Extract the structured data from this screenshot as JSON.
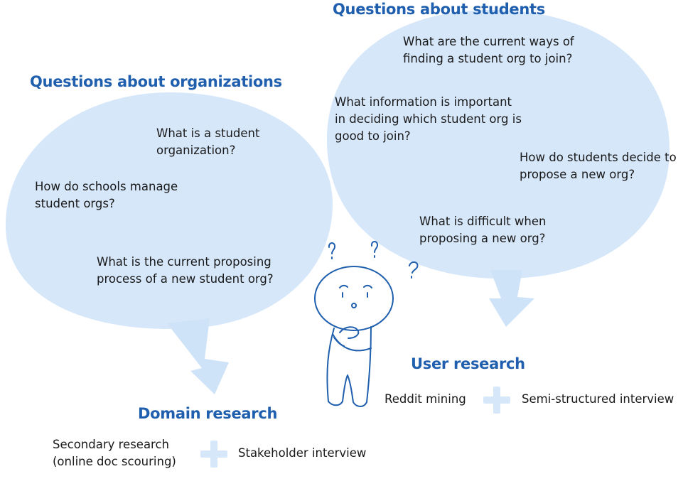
{
  "colors": {
    "bubble": "#d6e7fa",
    "arrow": "#cfe3f8",
    "heading": "#1f5fae",
    "sketch": "#1f5fae"
  },
  "student_bubble": {
    "title": "Questions about students",
    "questions": [
      "What are the current ways of\nfinding a student org to join?",
      "What information is important\nin deciding which student org is\ngood to join?",
      "How do students decide to\npropose a new org?",
      "What is difficult when\nproposing a new org?"
    ]
  },
  "org_bubble": {
    "title": "Questions about organizations",
    "questions": [
      "What is a student\norganization?",
      "How do schools manage\nstudent orgs?",
      "What is the current proposing\nprocess of a new student org?"
    ]
  },
  "user_research": {
    "title": "User research",
    "methods": [
      "Reddit mining",
      "Semi-structured interview"
    ],
    "joiner": "plus-icon"
  },
  "domain_research": {
    "title": "Domain research",
    "methods": [
      "Secondary research\n(online doc scouring)",
      "Stakeholder interview"
    ],
    "joiner": "plus-icon"
  },
  "figure": {
    "icon": "confused-person-icon"
  }
}
